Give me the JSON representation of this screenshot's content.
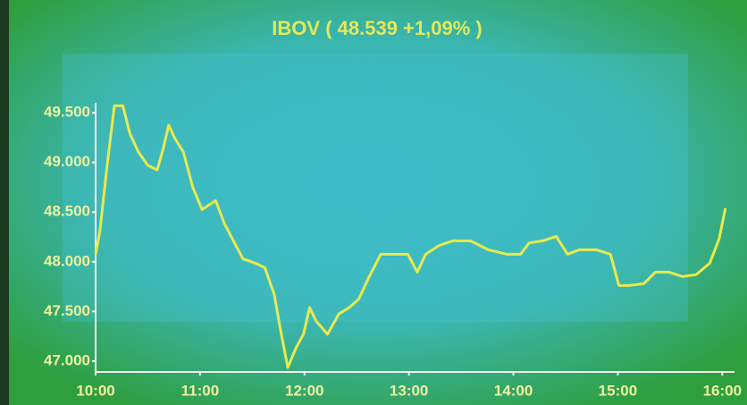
{
  "chart_data": {
    "type": "line",
    "title": "IBOV ( 48.539  +1,09% )",
    "x": [
      10.0,
      10.04,
      10.11,
      10.18,
      10.26,
      10.33,
      10.41,
      10.5,
      10.59,
      10.65,
      10.7,
      10.76,
      10.84,
      10.93,
      11.02,
      11.15,
      11.23,
      11.32,
      11.41,
      11.53,
      11.62,
      11.71,
      11.77,
      11.84,
      11.92,
      11.99,
      12.05,
      12.11,
      12.22,
      12.33,
      12.43,
      12.52,
      12.62,
      12.73,
      12.86,
      12.99,
      13.08,
      13.16,
      13.29,
      13.42,
      13.59,
      13.76,
      13.94,
      14.07,
      14.15,
      14.28,
      14.41,
      14.52,
      14.63,
      14.8,
      14.93,
      15.01,
      15.1,
      15.25,
      15.36,
      15.49,
      15.62,
      15.75,
      15.88,
      15.97,
      16.03
    ],
    "values": [
      48075,
      48300,
      48970,
      49570,
      49570,
      49285,
      49105,
      48970,
      48925,
      49150,
      49375,
      49240,
      49105,
      48750,
      48525,
      48615,
      48390,
      48210,
      48030,
      47985,
      47940,
      47670,
      47315,
      46935,
      47135,
      47270,
      47540,
      47405,
      47270,
      47475,
      47540,
      47625,
      47850,
      48075,
      48075,
      48075,
      47895,
      48075,
      48165,
      48210,
      48210,
      48120,
      48075,
      48075,
      48190,
      48210,
      48255,
      48075,
      48120,
      48120,
      48075,
      47760,
      47760,
      47780,
      47895,
      47895,
      47850,
      47870,
      47985,
      48230,
      48540
    ],
    "color": "#e8ea4c",
    "xlim": [
      10,
      16.1
    ],
    "xticks": [
      {
        "value": 10,
        "label": "10:00"
      },
      {
        "value": 11,
        "label": "11:00"
      },
      {
        "value": 12,
        "label": "12:00"
      },
      {
        "value": 13,
        "label": "13:00"
      },
      {
        "value": 14,
        "label": "14:00"
      },
      {
        "value": 15,
        "label": "15:00"
      },
      {
        "value": 16,
        "label": "16:00"
      }
    ],
    "ylim": [
      46900,
      49600
    ],
    "yticks": [
      {
        "value": 47000,
        "label": "47.000"
      },
      {
        "value": 47500,
        "label": "47.500"
      },
      {
        "value": 48000,
        "label": "48.000"
      },
      {
        "value": 48500,
        "label": "48.500"
      },
      {
        "value": 49000,
        "label": "49.000"
      },
      {
        "value": 49500,
        "label": "49.500"
      }
    ],
    "grid": false
  }
}
